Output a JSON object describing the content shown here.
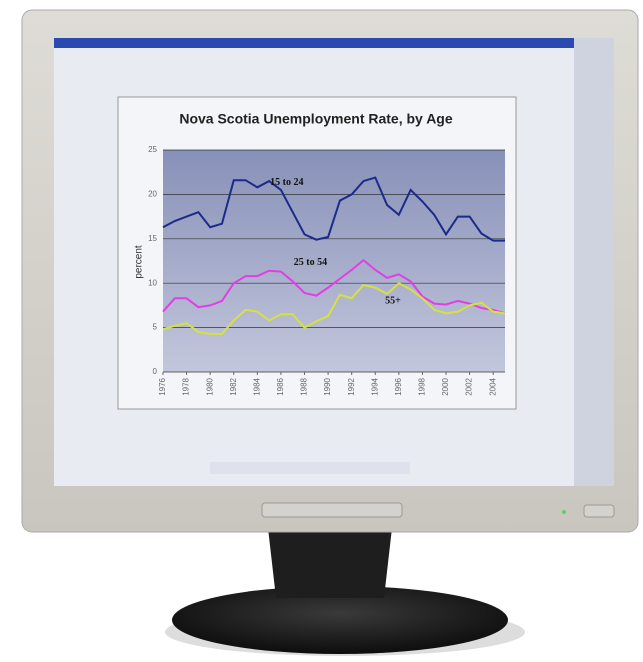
{
  "chart_data": {
    "type": "line",
    "title": "Nova Scotia Unemployment Rate, by Age",
    "y_label": "percent",
    "x": [
      1976,
      1977,
      1978,
      1979,
      1980,
      1981,
      1982,
      1983,
      1984,
      1985,
      1986,
      1987,
      1988,
      1989,
      1990,
      1991,
      1992,
      1993,
      1994,
      1995,
      1996,
      1997,
      1998,
      1999,
      2000,
      2001,
      2002,
      2003,
      2004,
      2005
    ],
    "xlim": [
      1976,
      2005
    ],
    "xticks": [
      1976,
      1978,
      1980,
      1982,
      1984,
      1986,
      1988,
      1990,
      1992,
      1994,
      1996,
      1998,
      2000,
      2002,
      2004
    ],
    "ylim": [
      0,
      25
    ],
    "yticks": [
      0,
      5,
      10,
      15,
      20,
      25
    ],
    "grid": true,
    "series": [
      {
        "name": "15 to 24",
        "color": "#1c2a8a",
        "values": [
          16.3,
          17,
          17.5,
          18,
          16.3,
          16.7,
          21.6,
          21.6,
          20.8,
          21.5,
          20.5,
          18,
          15.5,
          14.9,
          15.2,
          19.3,
          20,
          21.5,
          21.9,
          18.8,
          17.7,
          20.5,
          19.2,
          17.7,
          15.5,
          17.5,
          17.5,
          15.6,
          14.8,
          14.8
        ]
      },
      {
        "name": "25 to 54",
        "color": "#e23ee6",
        "values": [
          6.8,
          8.3,
          8.3,
          7.3,
          7.5,
          8,
          10,
          10.8,
          10.8,
          11.4,
          11.3,
          10.2,
          8.9,
          8.6,
          9.5,
          10.5,
          11.5,
          12.6,
          11.5,
          10.6,
          11,
          10.2,
          8.5,
          7.7,
          7.6,
          8,
          7.7,
          7.2,
          7,
          6.6
        ]
      },
      {
        "name": "55+",
        "color": "#d6e23c",
        "values": [
          4.8,
          5.2,
          5.5,
          4.5,
          4.3,
          4.3,
          5.8,
          7,
          6.8,
          5.8,
          6.5,
          6.5,
          5,
          5.7,
          6.3,
          8.7,
          8.3,
          9.8,
          9.5,
          8.8,
          10,
          9.3,
          8.3,
          7,
          6.6,
          6.8,
          7.5,
          7.8,
          6.8,
          6.6
        ]
      }
    ]
  }
}
